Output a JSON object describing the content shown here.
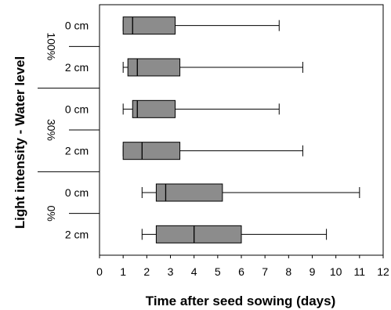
{
  "chart_data": {
    "type": "boxplot",
    "orientation": "horizontal",
    "title": "",
    "xlabel": "Time after seed sowing (days)",
    "ylabel": "Light intensity - Water level",
    "xlim": [
      0,
      12
    ],
    "xticks": [
      "0",
      "1",
      "2",
      "3",
      "4",
      "5",
      "6",
      "7",
      "8",
      "9",
      "10",
      "11",
      "12"
    ],
    "box_color": "#8c8c8c",
    "groups": [
      {
        "label": "100%",
        "rows": [
          {
            "label": "0 cm",
            "min": 1.0,
            "q1": 1.0,
            "median": 1.4,
            "q3": 3.2,
            "max": 7.6
          },
          {
            "label": "2 cm",
            "min": 1.0,
            "q1": 1.2,
            "median": 1.6,
            "q3": 3.4,
            "max": 8.6
          }
        ]
      },
      {
        "label": "30%",
        "rows": [
          {
            "label": "0 cm",
            "min": 1.0,
            "q1": 1.4,
            "median": 1.6,
            "q3": 3.2,
            "max": 7.6
          },
          {
            "label": "2 cm",
            "min": 1.0,
            "q1": 1.0,
            "median": 1.8,
            "q3": 3.4,
            "max": 8.6
          }
        ]
      },
      {
        "label": "0%",
        "rows": [
          {
            "label": "0 cm",
            "min": 1.8,
            "q1": 2.4,
            "median": 2.8,
            "q3": 5.2,
            "max": 11.0
          },
          {
            "label": "2 cm",
            "min": 1.8,
            "q1": 2.4,
            "median": 4.0,
            "q3": 6.0,
            "max": 9.6
          }
        ]
      }
    ]
  }
}
